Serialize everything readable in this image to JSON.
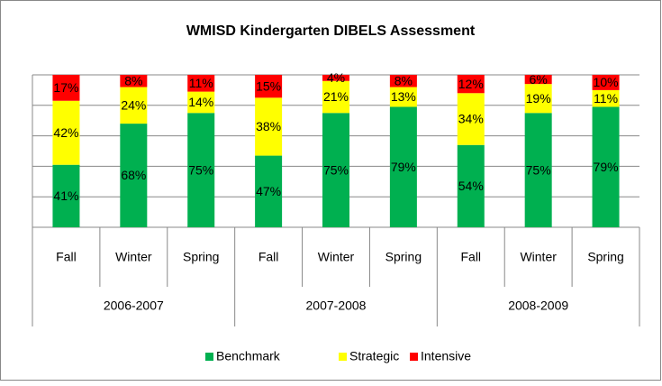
{
  "chart_data": {
    "type": "stacked_bar",
    "title": "WMISD Kindergarten DIBELS Assessment",
    "groups": [
      {
        "name": "2006-2007",
        "categories": [
          "Fall",
          "Winter",
          "Spring"
        ]
      },
      {
        "name": "2007-2008",
        "categories": [
          "Fall",
          "Winter",
          "Spring"
        ]
      },
      {
        "name": "2008-2009",
        "categories": [
          "Fall",
          "Winter",
          "Spring"
        ]
      }
    ],
    "series": [
      {
        "name": "Benchmark",
        "color": "#00b050",
        "values": [
          41,
          68,
          75,
          47,
          75,
          79,
          54,
          75,
          79
        ],
        "value_labels": [
          "41%",
          "68%",
          "75%",
          "47%",
          "75%",
          "79%",
          "54%",
          "75%",
          "79%"
        ]
      },
      {
        "name": "Strategic",
        "color": "#ffff00",
        "values": [
          42,
          24,
          14,
          38,
          21,
          13,
          34,
          19,
          11
        ],
        "value_labels": [
          "42%",
          "24%",
          "14%",
          "38%",
          "21%",
          "13%",
          "34%",
          "19%",
          "11%"
        ]
      },
      {
        "name": "Intensive",
        "color": "#ff0000",
        "values": [
          17,
          8,
          11,
          15,
          4,
          8,
          12,
          6,
          10
        ],
        "value_labels": [
          "17%",
          "8%",
          "11%",
          "15%",
          "4%",
          "8%",
          "12%",
          "6%",
          "10%"
        ]
      }
    ],
    "ylim": [
      0,
      100
    ],
    "yticks": [
      0,
      20,
      40,
      60,
      80,
      100
    ],
    "grid": true,
    "legend": "bottom"
  }
}
